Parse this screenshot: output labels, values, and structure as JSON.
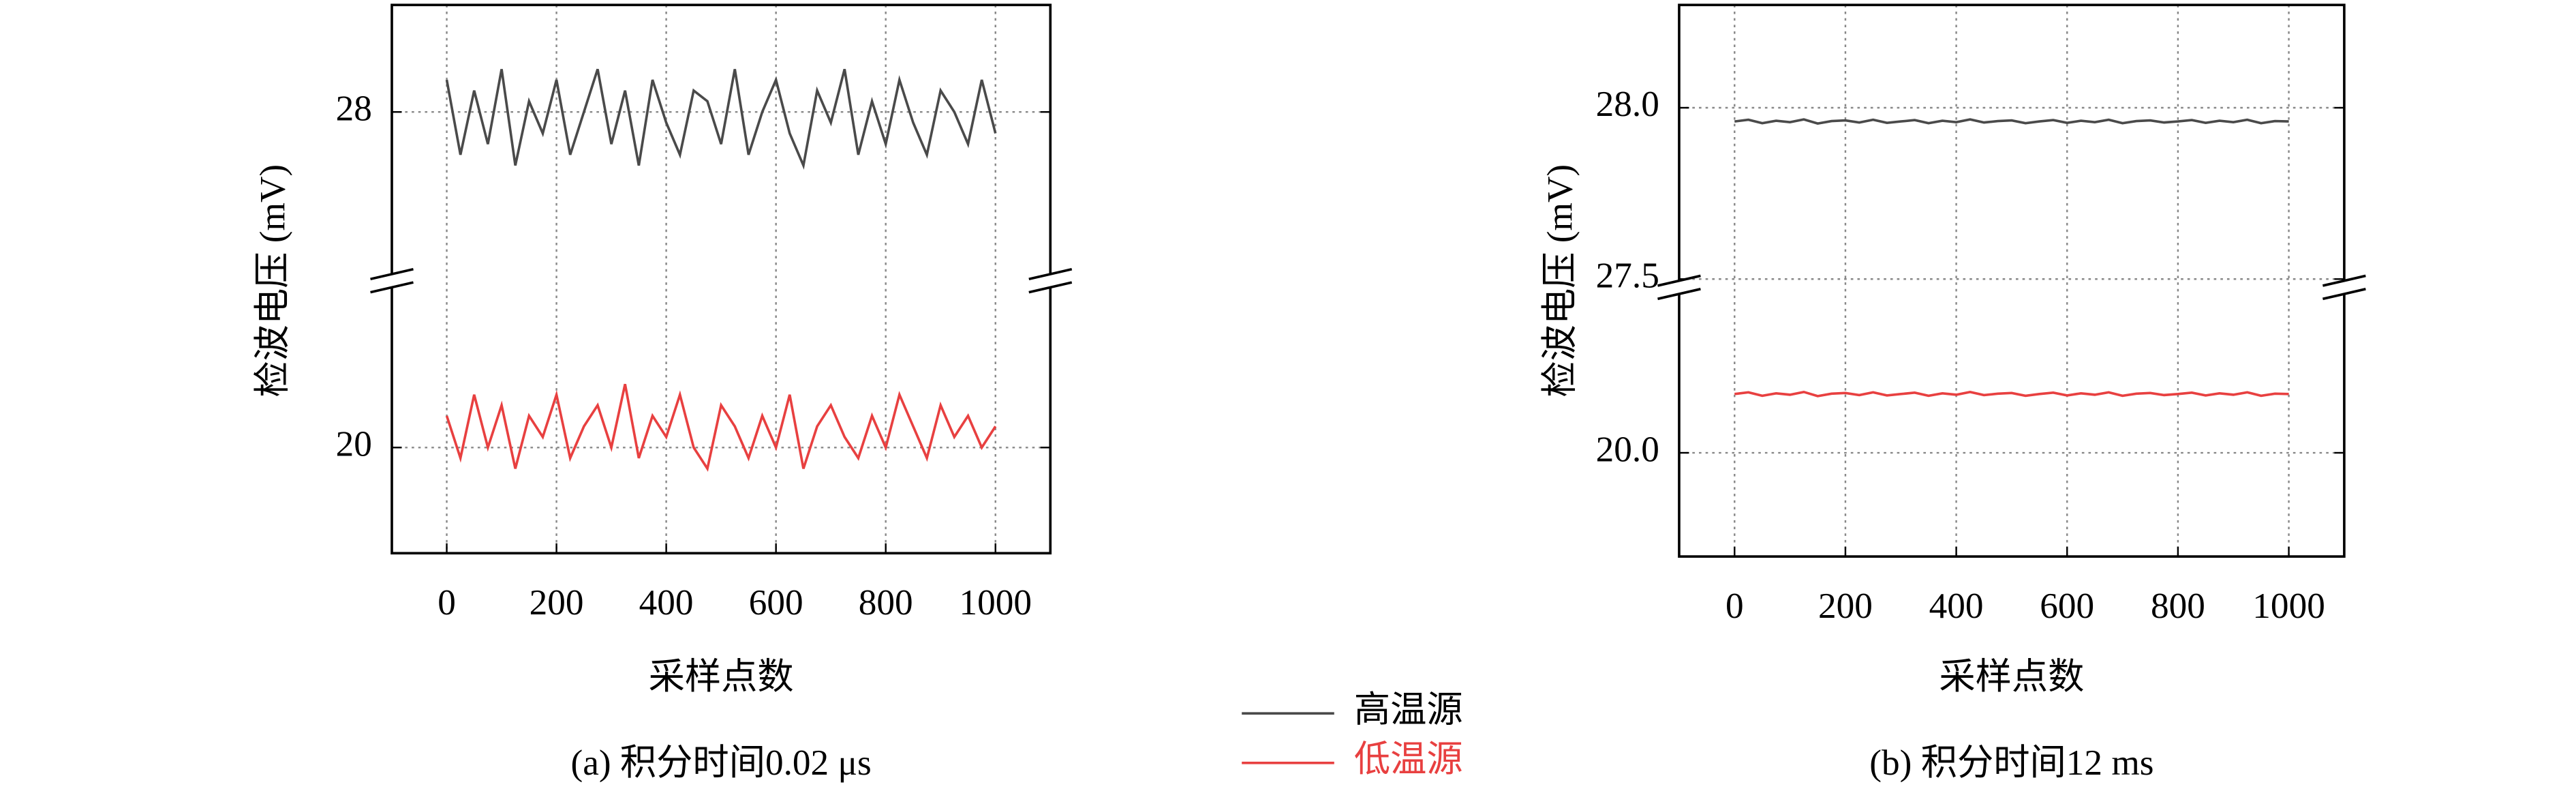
{
  "chart_data": [
    {
      "type": "line",
      "caption": "(a) 积分时间0.02 μs",
      "xlabel": "采样点数",
      "ylabel": "检波电压 (mV)",
      "xlim": [
        -100,
        1100
      ],
      "xticks": [
        0,
        200,
        400,
        600,
        800,
        1000
      ],
      "grid": true,
      "broken_axis": true,
      "segments": [
        {
          "ylim": [
            26.5,
            29
          ],
          "yticks": [
            28
          ]
        },
        {
          "ylim": [
            19,
            21.5
          ],
          "yticks": [
            20
          ]
        }
      ],
      "x": [
        0,
        25,
        50,
        75,
        100,
        125,
        150,
        175,
        200,
        225,
        250,
        275,
        300,
        325,
        350,
        375,
        400,
        425,
        450,
        475,
        500,
        525,
        550,
        575,
        600,
        625,
        650,
        675,
        700,
        725,
        750,
        775,
        800,
        825,
        850,
        875,
        900,
        925,
        950,
        975,
        1000
      ],
      "series": [
        {
          "name": "高温源",
          "color": "#4a4a4a",
          "segment": 0,
          "values": [
            28.3,
            27.6,
            28.2,
            27.7,
            28.4,
            27.5,
            28.1,
            27.8,
            28.3,
            27.6,
            28.0,
            28.4,
            27.7,
            28.2,
            27.5,
            28.3,
            27.9,
            27.6,
            28.2,
            28.1,
            27.7,
            28.4,
            27.6,
            28.0,
            28.3,
            27.8,
            27.5,
            28.2,
            27.9,
            28.4,
            27.6,
            28.1,
            27.7,
            28.3,
            27.9,
            27.6,
            28.2,
            28.0,
            27.7,
            28.3,
            27.8
          ]
        },
        {
          "name": "低温源",
          "color": "#e84040",
          "segment": 1,
          "values": [
            20.3,
            19.9,
            20.5,
            20.0,
            20.4,
            19.8,
            20.3,
            20.1,
            20.5,
            19.9,
            20.2,
            20.4,
            20.0,
            20.6,
            19.9,
            20.3,
            20.1,
            20.5,
            20.0,
            19.8,
            20.4,
            20.2,
            19.9,
            20.3,
            20.0,
            20.5,
            19.8,
            20.2,
            20.4,
            20.1,
            19.9,
            20.3,
            20.0,
            20.5,
            20.2,
            19.9,
            20.4,
            20.1,
            20.3,
            20.0,
            20.2
          ]
        }
      ]
    },
    {
      "type": "line",
      "caption": "(b) 积分时间12 ms",
      "xlabel": "采样点数",
      "ylabel": "检波电压 (mV)",
      "xlim": [
        -100,
        1100
      ],
      "xticks": [
        0,
        200,
        400,
        600,
        800,
        1000
      ],
      "grid": true,
      "broken_axis": true,
      "segments": [
        {
          "ylim": [
            27.5,
            28.3
          ],
          "yticks": [
            {
              "value": 27.5,
              "label": "27.5"
            },
            {
              "value": 28,
              "label": "28.0"
            }
          ]
        },
        {
          "ylim": [
            19.7,
            20.45
          ],
          "yticks": [
            {
              "value": 20,
              "label": "20.0"
            }
          ]
        }
      ],
      "x": [
        0,
        25,
        50,
        75,
        100,
        125,
        150,
        175,
        200,
        225,
        250,
        275,
        300,
        325,
        350,
        375,
        400,
        425,
        450,
        475,
        500,
        525,
        550,
        575,
        600,
        625,
        650,
        675,
        700,
        725,
        750,
        775,
        800,
        825,
        850,
        875,
        900,
        925,
        950,
        975,
        1000
      ],
      "series": [
        {
          "name": "高温源",
          "color": "#4a4a4a",
          "segment": 0,
          "values": [
            27.96,
            27.965,
            27.955,
            27.962,
            27.958,
            27.966,
            27.954,
            27.961,
            27.963,
            27.957,
            27.965,
            27.956,
            27.96,
            27.964,
            27.955,
            27.962,
            27.958,
            27.966,
            27.957,
            27.961,
            27.963,
            27.955,
            27.96,
            27.964,
            27.956,
            27.962,
            27.958,
            27.965,
            27.955,
            27.961,
            27.963,
            27.957,
            27.96,
            27.964,
            27.956,
            27.962,
            27.958,
            27.965,
            27.955,
            27.961,
            27.96
          ]
        },
        {
          "name": "低温源",
          "color": "#e84040",
          "segment": 1,
          "values": [
            20.17,
            20.175,
            20.165,
            20.172,
            20.168,
            20.176,
            20.164,
            20.171,
            20.173,
            20.167,
            20.175,
            20.166,
            20.17,
            20.174,
            20.165,
            20.172,
            20.168,
            20.176,
            20.167,
            20.171,
            20.173,
            20.165,
            20.17,
            20.174,
            20.166,
            20.172,
            20.168,
            20.175,
            20.165,
            20.171,
            20.173,
            20.167,
            20.17,
            20.174,
            20.166,
            20.172,
            20.168,
            20.175,
            20.165,
            20.171,
            20.17
          ]
        }
      ]
    }
  ]
}
